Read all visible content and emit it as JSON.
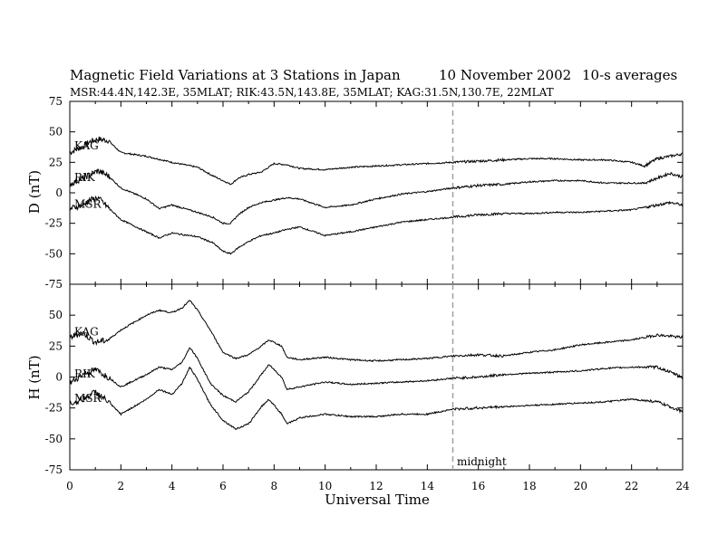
{
  "header": {
    "title_left": "Magnetic Field Variations at 3 Stations in Japan",
    "title_date": "10 November 2002",
    "title_right": "10-s averages",
    "subtitle": "MSR:44.4N,142.3E, 35MLAT;  RIK:43.5N,143.8E, 35MLAT;  KAG:31.5N,130.7E, 22MLAT"
  },
  "chart_data": [
    {
      "type": "line",
      "panel": "top",
      "ylabel": "D (nT)",
      "xlabel": "",
      "xlim": [
        0,
        24
      ],
      "ylim": [
        -75,
        75
      ],
      "yticks": [
        75,
        50,
        25,
        0,
        -25,
        -50,
        -75
      ],
      "xticks": [
        0,
        2,
        4,
        6,
        8,
        10,
        12,
        14,
        16,
        18,
        20,
        22,
        24
      ],
      "grid": false,
      "series": [
        {
          "name": "KAG",
          "x": [
            0,
            0.5,
            0.8,
            1.1,
            1.5,
            2,
            3,
            4,
            5,
            5.6,
            6,
            6.3,
            6.6,
            7,
            7.5,
            8,
            8.5,
            9,
            10,
            11,
            12,
            13,
            14,
            15,
            16,
            17,
            18,
            19,
            20,
            21,
            22,
            22.5,
            23,
            23.5,
            24
          ],
          "y": [
            33,
            38,
            42,
            44,
            43,
            33,
            30,
            25,
            21,
            14,
            10,
            7,
            12,
            15,
            17,
            24,
            23,
            20,
            19,
            21,
            22,
            23,
            24,
            25,
            26,
            27,
            28,
            28,
            27,
            27,
            25,
            22,
            28,
            30,
            32
          ]
        },
        {
          "name": "RIK",
          "x": [
            0,
            0.5,
            0.8,
            1.1,
            1.5,
            2,
            3,
            3.5,
            4,
            5,
            5.6,
            6,
            6.3,
            6.6,
            7,
            7.5,
            8,
            8.5,
            9,
            10,
            11,
            12,
            13,
            14,
            15,
            16,
            17,
            18,
            19,
            20,
            21,
            22,
            22.5,
            23,
            23.5,
            24
          ],
          "y": [
            7,
            12,
            15,
            18,
            14,
            4,
            -5,
            -13,
            -10,
            -16,
            -20,
            -25,
            -25,
            -18,
            -12,
            -8,
            -6,
            -4,
            -5,
            -12,
            -10,
            -5,
            -1,
            1,
            4,
            6,
            7,
            9,
            10,
            10,
            8,
            8,
            8,
            12,
            16,
            13
          ]
        },
        {
          "name": "MSR",
          "x": [
            0,
            0.5,
            0.8,
            1.1,
            1.5,
            2,
            3,
            3.5,
            4,
            5,
            5.6,
            6,
            6.3,
            6.6,
            7,
            7.5,
            8,
            8.5,
            9,
            10,
            11,
            12,
            13,
            14,
            15,
            16,
            17,
            18,
            19,
            20,
            21,
            22,
            22.5,
            23,
            23.5,
            24
          ],
          "y": [
            -13,
            -10,
            -6,
            -4,
            -12,
            -22,
            -32,
            -37,
            -33,
            -36,
            -41,
            -48,
            -50,
            -45,
            -40,
            -35,
            -33,
            -30,
            -28,
            -35,
            -32,
            -28,
            -24,
            -22,
            -20,
            -18,
            -17,
            -17,
            -16,
            -16,
            -15,
            -14,
            -12,
            -10,
            -8,
            -10
          ]
        }
      ]
    },
    {
      "type": "line",
      "panel": "bottom",
      "ylabel": "H (nT)",
      "xlabel": "Universal Time",
      "xlim": [
        0,
        24
      ],
      "ylim": [
        -75,
        75
      ],
      "yticks": [
        50,
        25,
        0,
        -25,
        -50,
        -75
      ],
      "xticks": [
        0,
        2,
        4,
        6,
        8,
        10,
        12,
        14,
        16,
        18,
        20,
        22,
        24
      ],
      "grid": false,
      "series": [
        {
          "name": "KAG",
          "x": [
            0,
            0.5,
            1,
            1.5,
            2,
            3,
            3.5,
            4,
            4.4,
            4.7,
            5,
            5.5,
            6,
            6.5,
            7,
            7.5,
            7.8,
            8.3,
            8.5,
            9,
            10,
            11,
            12,
            13,
            14,
            15,
            16,
            17,
            18,
            19,
            20,
            21,
            22,
            23,
            24
          ],
          "y": [
            32,
            36,
            28,
            30,
            38,
            50,
            54,
            52,
            56,
            62,
            54,
            38,
            20,
            15,
            18,
            25,
            30,
            25,
            16,
            14,
            16,
            14,
            13,
            14,
            15,
            17,
            18,
            17,
            20,
            22,
            26,
            28,
            30,
            34,
            32
          ]
        },
        {
          "name": "RIK",
          "x": [
            0,
            0.5,
            1,
            1.5,
            2,
            3,
            3.5,
            4,
            4.4,
            4.7,
            5,
            5.5,
            6,
            6.5,
            7,
            7.5,
            7.8,
            8.3,
            8.5,
            9,
            10,
            11,
            12,
            13,
            14,
            15,
            16,
            17,
            18,
            19,
            20,
            21,
            22,
            23,
            24
          ],
          "y": [
            -5,
            2,
            6,
            0,
            -8,
            2,
            8,
            6,
            12,
            24,
            15,
            -5,
            -15,
            -20,
            -12,
            2,
            10,
            0,
            -10,
            -8,
            -4,
            -6,
            -5,
            -4,
            -3,
            -1,
            0,
            2,
            3,
            4,
            5,
            7,
            8,
            8,
            0
          ]
        },
        {
          "name": "MSR",
          "x": [
            0,
            0.5,
            1,
            1.5,
            2,
            3,
            3.5,
            4,
            4.4,
            4.7,
            5,
            5.5,
            6,
            6.5,
            7,
            7.5,
            7.8,
            8.3,
            8.5,
            9,
            10,
            11,
            12,
            13,
            14,
            15,
            16,
            17,
            18,
            19,
            20,
            21,
            22,
            23,
            24
          ],
          "y": [
            -22,
            -18,
            -12,
            -20,
            -30,
            -18,
            -10,
            -14,
            -5,
            8,
            -2,
            -22,
            -35,
            -42,
            -38,
            -24,
            -18,
            -30,
            -38,
            -33,
            -30,
            -32,
            -32,
            -30,
            -30,
            -26,
            -25,
            -24,
            -23,
            -22,
            -21,
            -20,
            -18,
            -20,
            -28
          ]
        }
      ]
    }
  ],
  "annotations": {
    "midnight_label": "midnight",
    "midnight_x": 15,
    "line_color": "#000000",
    "marker_color": "#a0a0a0"
  }
}
